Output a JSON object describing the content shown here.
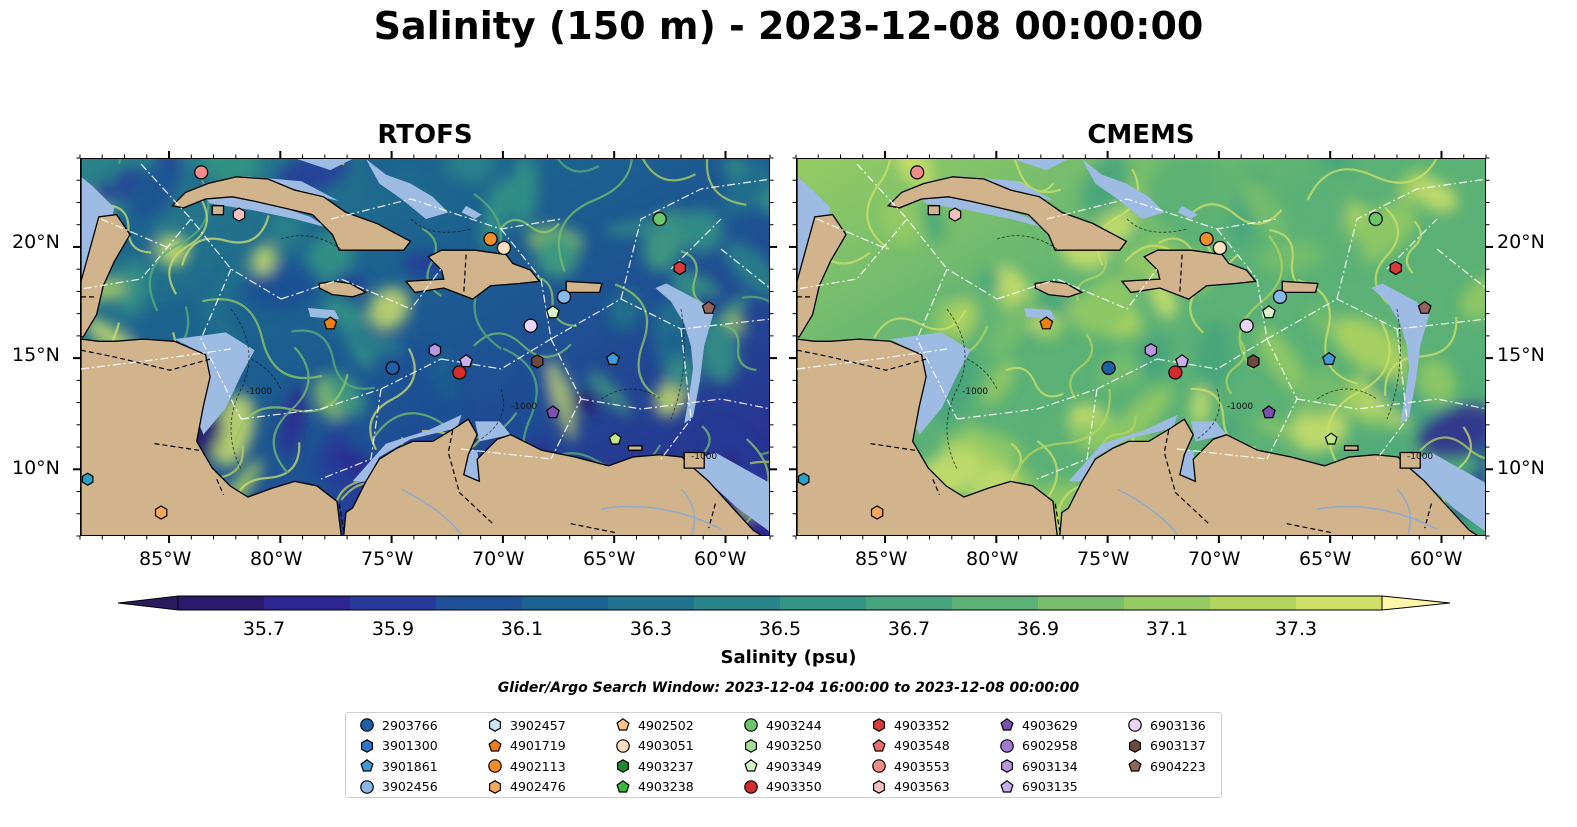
{
  "title": "Salinity (150 m) - 2023-12-08 00:00:00",
  "panels": [
    {
      "title": "RTOFS",
      "scheme": "rtofs"
    },
    {
      "title": "CMEMS",
      "scheme": "cmems"
    }
  ],
  "map": {
    "lon_range": [
      -89,
      -58
    ],
    "lat_range": [
      7,
      24
    ],
    "lon_ticks": [
      "85°W",
      "80°W",
      "75°W",
      "70°W",
      "65°W",
      "60°W"
    ],
    "lat_ticks": [
      "20°N",
      "15°N",
      "10°N"
    ],
    "land_color": "#d2b48c",
    "shelf_color": "#9dbbe3",
    "deep_color": "#2c1f6e",
    "contour_label": "-1000"
  },
  "colorbar": {
    "label": "Salinity (psu)",
    "ticks": [
      "35.7",
      "35.9",
      "36.1",
      "36.3",
      "36.5",
      "36.7",
      "36.9",
      "37.1",
      "37.3"
    ],
    "colors": [
      "#2b1a6b",
      "#2d2590",
      "#273a9a",
      "#1f4f94",
      "#1c628f",
      "#20738c",
      "#2a8489",
      "#359584",
      "#45a37d",
      "#5bb176",
      "#78be6c",
      "#96cb63",
      "#b3d55e",
      "#cfe06a"
    ],
    "extend_low": "#2a1b5e",
    "extend_high": "#fdf6a8"
  },
  "search_window": "Glider/Argo Search Window: 2023-12-04 16:00:00 to 2023-12-08 00:00:00",
  "floats": [
    {
      "id": "2903766",
      "color": "#1f5fa6",
      "marker": "circle",
      "lon": -75.0,
      "lat": 14.6
    },
    {
      "id": "3901300",
      "color": "#2e78c7",
      "marker": "hexagon",
      "lon": null,
      "lat": null
    },
    {
      "id": "3901861",
      "color": "#3f9bd8",
      "marker": "pentagon",
      "lon": -65.1,
      "lat": 15.0
    },
    {
      "id": "3902456",
      "color": "#86b9ea",
      "marker": "circle",
      "lon": -67.3,
      "lat": 17.8
    },
    {
      "id": "3902457",
      "color": "#c6e4f8",
      "marker": "hexagon",
      "lon": null,
      "lat": null
    },
    {
      "id": "4901719",
      "color": "#f07f12",
      "marker": "pentagon",
      "lon": -77.8,
      "lat": 16.6
    },
    {
      "id": "4902113",
      "color": "#f28c28",
      "marker": "circle",
      "lon": -70.6,
      "lat": 20.4
    },
    {
      "id": "4902476",
      "color": "#f7a85a",
      "marker": "hexagon",
      "lon": -85.4,
      "lat": 8.1
    },
    {
      "id": "4902502",
      "color": "#f9c58e",
      "marker": "pentagon",
      "lon": null,
      "lat": null
    },
    {
      "id": "4903051",
      "color": "#fde0c0",
      "marker": "circle",
      "lon": -70.0,
      "lat": 20.0
    },
    {
      "id": "4903237",
      "color": "#1f8a2a",
      "marker": "hexagon",
      "lon": null,
      "lat": null
    },
    {
      "id": "4903238",
      "color": "#3cb83c",
      "marker": "pentagon",
      "lon": null,
      "lat": null
    },
    {
      "id": "4903244",
      "color": "#6cc56a",
      "marker": "circle",
      "lon": -63.0,
      "lat": 21.3
    },
    {
      "id": "4903250",
      "color": "#a3df95",
      "marker": "hexagon",
      "lon": null,
      "lat": null
    },
    {
      "id": "4903349",
      "color": "#d3f5c4",
      "marker": "pentagon",
      "lon": -67.8,
      "lat": 17.1
    },
    {
      "id": "4903350",
      "color": "#d42b2b",
      "marker": "circle",
      "lon": -72.0,
      "lat": 14.4
    },
    {
      "id": "4903352",
      "color": "#d93a3a",
      "marker": "hexagon",
      "lon": -62.1,
      "lat": 19.1
    },
    {
      "id": "4903548",
      "color": "#ef6d6d",
      "marker": "pentagon",
      "lon": null,
      "lat": null
    },
    {
      "id": "4903553",
      "color": "#f38b8b",
      "marker": "circle",
      "lon": -83.6,
      "lat": 23.4
    },
    {
      "id": "4903563",
      "color": "#f7c0c0",
      "marker": "hexagon",
      "lon": -81.9,
      "lat": 21.5
    },
    {
      "id": "4903629",
      "color": "#7d4fb0",
      "marker": "pentagon",
      "lon": -67.8,
      "lat": 12.6
    },
    {
      "id": "6902958",
      "color": "#a07ad0",
      "marker": "circle",
      "lon": null,
      "lat": null
    },
    {
      "id": "6903134",
      "color": "#b896e0",
      "marker": "hexagon",
      "lon": -73.1,
      "lat": 15.4
    },
    {
      "id": "6903135",
      "color": "#c9aef0",
      "marker": "pentagon",
      "lon": -71.7,
      "lat": 14.9
    },
    {
      "id": "6903136",
      "color": "#ead5f7",
      "marker": "circle",
      "lon": -68.8,
      "lat": 16.5
    },
    {
      "id": "6903137",
      "color": "#6e4a3e",
      "marker": "hexagon",
      "lon": -68.5,
      "lat": 14.9
    },
    {
      "id": "6904223",
      "color": "#93655a",
      "marker": "pentagon",
      "lon": -60.8,
      "lat": 17.3
    }
  ],
  "edge_floats": [
    {
      "color": "#2aa1c7",
      "marker": "hexagon",
      "lon": -88.7,
      "lat": 9.6
    },
    {
      "color": "#bfe88a",
      "marker": "pentagon",
      "lon": -65.0,
      "lat": 11.4
    }
  ]
}
